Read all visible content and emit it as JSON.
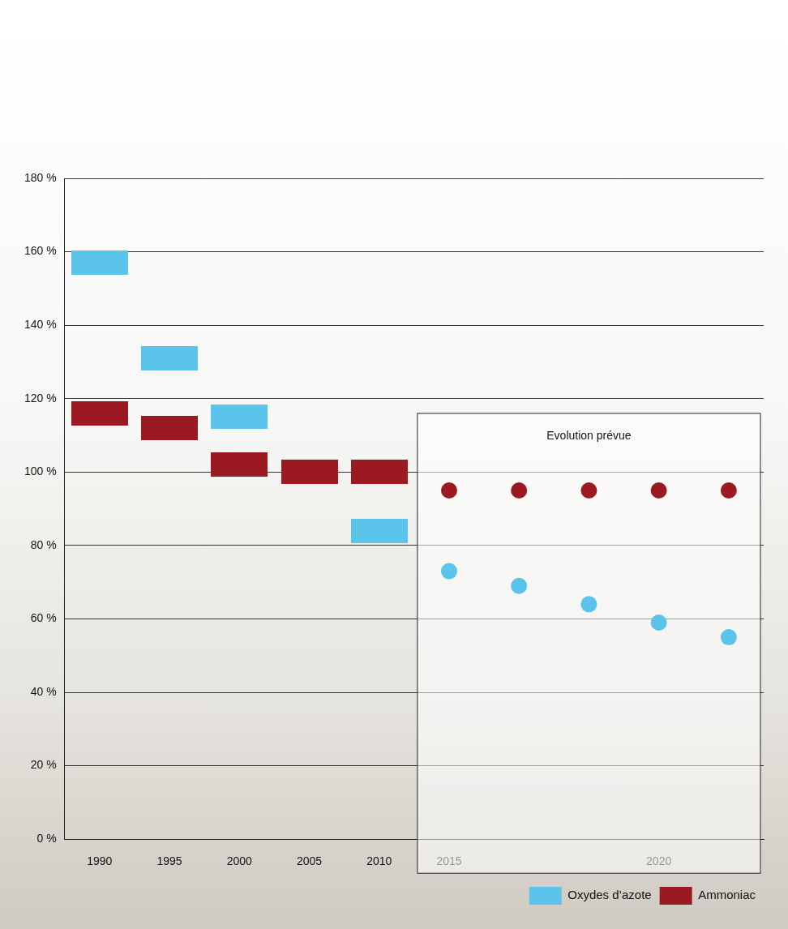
{
  "chart_data": {
    "type": "line",
    "annotation": "Evolution prévue",
    "categories": [
      "1990",
      "1995",
      "2000",
      "2005",
      "2010",
      "2015",
      null,
      null,
      "2020",
      null
    ],
    "series": [
      {
        "name": "Oxydes d’azote",
        "color": "#5bc4ea",
        "marker": "rect",
        "line_style": "none",
        "values": [
          157,
          131,
          115,
          100,
          84,
          null,
          null,
          null,
          null,
          null
        ]
      },
      {
        "name": "Ammoniac",
        "color": "#9b1a22",
        "marker": "rect",
        "line_style": "none",
        "values": [
          116,
          112,
          102,
          100,
          100,
          null,
          null,
          null,
          null,
          null
        ]
      },
      {
        "name": "Oxydes d’azote",
        "color": "#5bc4ea",
        "marker": "circle",
        "line_style": "none",
        "values": [
          null,
          null,
          null,
          null,
          null,
          73,
          69,
          64,
          59,
          55
        ]
      },
      {
        "name": "Ammoniac",
        "color": "#9b1a22",
        "marker": "circle",
        "line_style": "none",
        "values": [
          null,
          null,
          null,
          null,
          null,
          95,
          95,
          95,
          95,
          95
        ]
      }
    ],
    "ylim": [
      0,
      180
    ],
    "yticks": [
      {
        "value": 0,
        "label": "0 %"
      },
      {
        "value": 20,
        "label": "20 %"
      },
      {
        "value": 40,
        "label": "40 %"
      },
      {
        "value": 60,
        "label": "60 %"
      },
      {
        "value": 80,
        "label": "80 %"
      },
      {
        "value": 100,
        "label": "100 %"
      },
      {
        "value": 120,
        "label": "120 %"
      },
      {
        "value": 140,
        "label": "140 %"
      },
      {
        "value": 160,
        "label": "160 %"
      },
      {
        "value": 180,
        "label": "180 %"
      }
    ],
    "grid": true,
    "legend": "bottom right"
  }
}
